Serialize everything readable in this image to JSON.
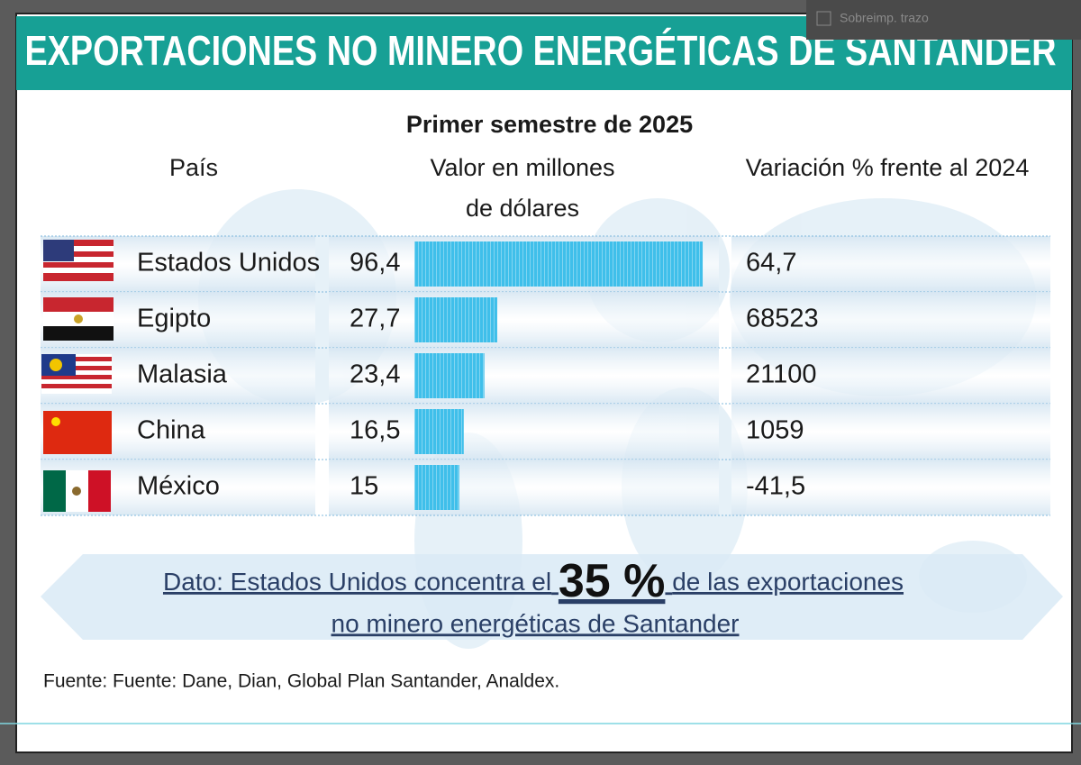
{
  "ui": {
    "overprint_label": "Sobreimp. trazo"
  },
  "chart_data": {
    "type": "bar",
    "title": "EXPORTACIONES NO MINERO ENERGÉTICAS DE SANTANDER",
    "subtitle": "Primer semestre de 2025",
    "column_headers": [
      "País",
      "Valor en millones",
      "de dólares",
      "Variación % frente al 2024"
    ],
    "categories": [
      "Estados Unidos",
      "Egipto",
      "Malasia",
      "China",
      "México"
    ],
    "values": [
      96.4,
      27.7,
      23.4,
      16.5,
      15
    ],
    "value_labels": [
      "96,4",
      "27,7",
      "23,4",
      "16,5",
      "15"
    ],
    "variation_labels": [
      "64,7",
      "68523",
      "21100",
      "1059",
      "-41,5"
    ],
    "color": "#3fbfea",
    "note": {
      "before": "Dato: Estados Unidos concentra el",
      "highlight": "35 %",
      "after": "de las exportaciones",
      "line2": "no minero energéticas de Santander"
    },
    "source": "Fuente: Fuente: Dane, Dian, Global Plan Santander, Analdex."
  }
}
